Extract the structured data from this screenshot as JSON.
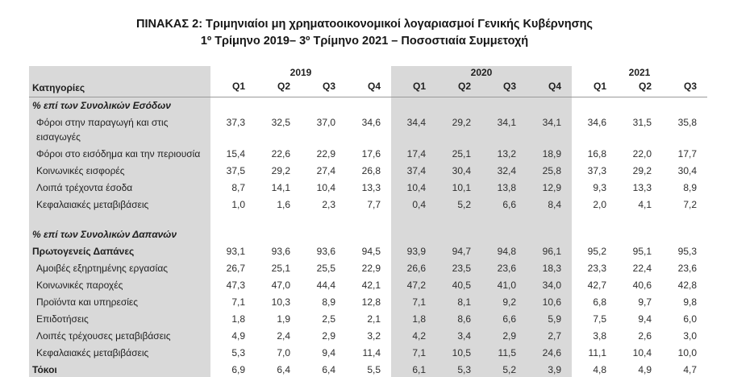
{
  "title": {
    "line1": "ΠΙΝΑΚΑΣ 2: Τριμηνιαίοι μη χρηματοοικονομικοί λογαριασμοί Γενικής Κυβέρνησης",
    "line2": "1º Τρίμηνο 2019– 3º Τρίμηνο 2021 – Ποσοστιαία Συμμετοχή"
  },
  "colors": {
    "highlight_bg": "#d9d9d9",
    "border_line": "#999999",
    "text": "#1f1f1f"
  },
  "table": {
    "category_header": "Κατηγορίες",
    "year_groups": [
      {
        "year": "2019",
        "quarters": [
          "Q1",
          "Q2",
          "Q3",
          "Q4"
        ],
        "highlight": false
      },
      {
        "year": "2020",
        "quarters": [
          "Q1",
          "Q2",
          "Q3",
          "Q4"
        ],
        "highlight": true
      },
      {
        "year": "2021",
        "quarters": [
          "Q1",
          "Q2",
          "Q3"
        ],
        "highlight": false
      }
    ],
    "rows": [
      {
        "label": "% επί των Συνολικών Εσόδων",
        "style": "section",
        "values": []
      },
      {
        "label": "Φόροι στην παραγωγή και στις",
        "label2": "εισαγωγές",
        "style": "item",
        "values": [
          "37,3",
          "32,5",
          "37,0",
          "34,6",
          "34,4",
          "29,2",
          "34,1",
          "34,1",
          "34,6",
          "31,5",
          "35,8"
        ]
      },
      {
        "label": "Φόροι στο εισόδημα και την περιουσία",
        "style": "item",
        "values": [
          "15,4",
          "22,6",
          "22,9",
          "17,6",
          "17,4",
          "25,1",
          "13,2",
          "18,9",
          "16,8",
          "22,0",
          "17,7"
        ]
      },
      {
        "label": "Κοινωνικές εισφορές",
        "style": "item",
        "values": [
          "37,5",
          "29,2",
          "27,4",
          "26,8",
          "37,4",
          "30,4",
          "32,4",
          "25,8",
          "37,3",
          "29,2",
          "30,4"
        ]
      },
      {
        "label": "Λοιπά τρέχοντα έσοδα",
        "style": "item",
        "values": [
          "8,7",
          "14,1",
          "10,4",
          "13,3",
          "10,4",
          "10,1",
          "13,8",
          "12,9",
          "9,3",
          "13,3",
          "8,9"
        ]
      },
      {
        "label": "Κεφαλαιακές μεταβιβάσεις",
        "style": "item",
        "values": [
          "1,0",
          "1,6",
          "2,3",
          "7,7",
          "0,4",
          "5,2",
          "6,6",
          "8,4",
          "2,0",
          "4,1",
          "7,2"
        ]
      },
      {
        "label": "",
        "style": "spacer",
        "values": []
      },
      {
        "label": "% επί των Συνολικών Δαπανών",
        "style": "section",
        "values": []
      },
      {
        "label": "Πρωτογενείς Δαπάνες",
        "style": "bold",
        "values": [
          "93,1",
          "93,6",
          "93,6",
          "94,5",
          "93,9",
          "94,7",
          "94,8",
          "96,1",
          "95,2",
          "95,1",
          "95,3"
        ]
      },
      {
        "label": "Αμοιβές εξηρτημένης εργασίας",
        "style": "item",
        "values": [
          "26,7",
          "25,1",
          "25,5",
          "22,9",
          "26,6",
          "23,5",
          "23,6",
          "18,3",
          "23,3",
          "22,4",
          "23,6"
        ]
      },
      {
        "label": "Κοινωνικές παροχές",
        "style": "item",
        "values": [
          "47,3",
          "47,0",
          "44,4",
          "42,1",
          "47,2",
          "40,5",
          "41,0",
          "34,0",
          "42,7",
          "40,6",
          "42,8"
        ]
      },
      {
        "label": "Προϊόντα και υπηρεσίες",
        "style": "item",
        "values": [
          "7,1",
          "10,3",
          "8,9",
          "12,8",
          "7,1",
          "8,1",
          "9,2",
          "10,6",
          "6,8",
          "9,7",
          "9,8"
        ]
      },
      {
        "label": "Επιδοτήσεις",
        "style": "item",
        "values": [
          "1,8",
          "1,9",
          "2,5",
          "2,1",
          "1,8",
          "8,6",
          "6,6",
          "5,9",
          "7,5",
          "9,4",
          "6,0"
        ]
      },
      {
        "label": "Λοιπές τρέχουσες μεταβιβάσεις",
        "style": "item",
        "values": [
          "4,9",
          "2,4",
          "2,9",
          "3,2",
          "4,2",
          "3,4",
          "2,9",
          "2,7",
          "3,8",
          "2,6",
          "3,0"
        ]
      },
      {
        "label": "Κεφαλαιακές μεταβιβάσεις",
        "style": "item",
        "values": [
          "5,3",
          "7,0",
          "9,4",
          "11,4",
          "7,1",
          "10,5",
          "11,5",
          "24,6",
          "11,1",
          "10,4",
          "10,0"
        ]
      },
      {
        "label": "Τόκοι",
        "style": "bold",
        "values": [
          "6,9",
          "6,4",
          "6,4",
          "5,5",
          "6,1",
          "5,3",
          "5,2",
          "3,9",
          "4,8",
          "4,9",
          "4,7"
        ]
      }
    ]
  }
}
